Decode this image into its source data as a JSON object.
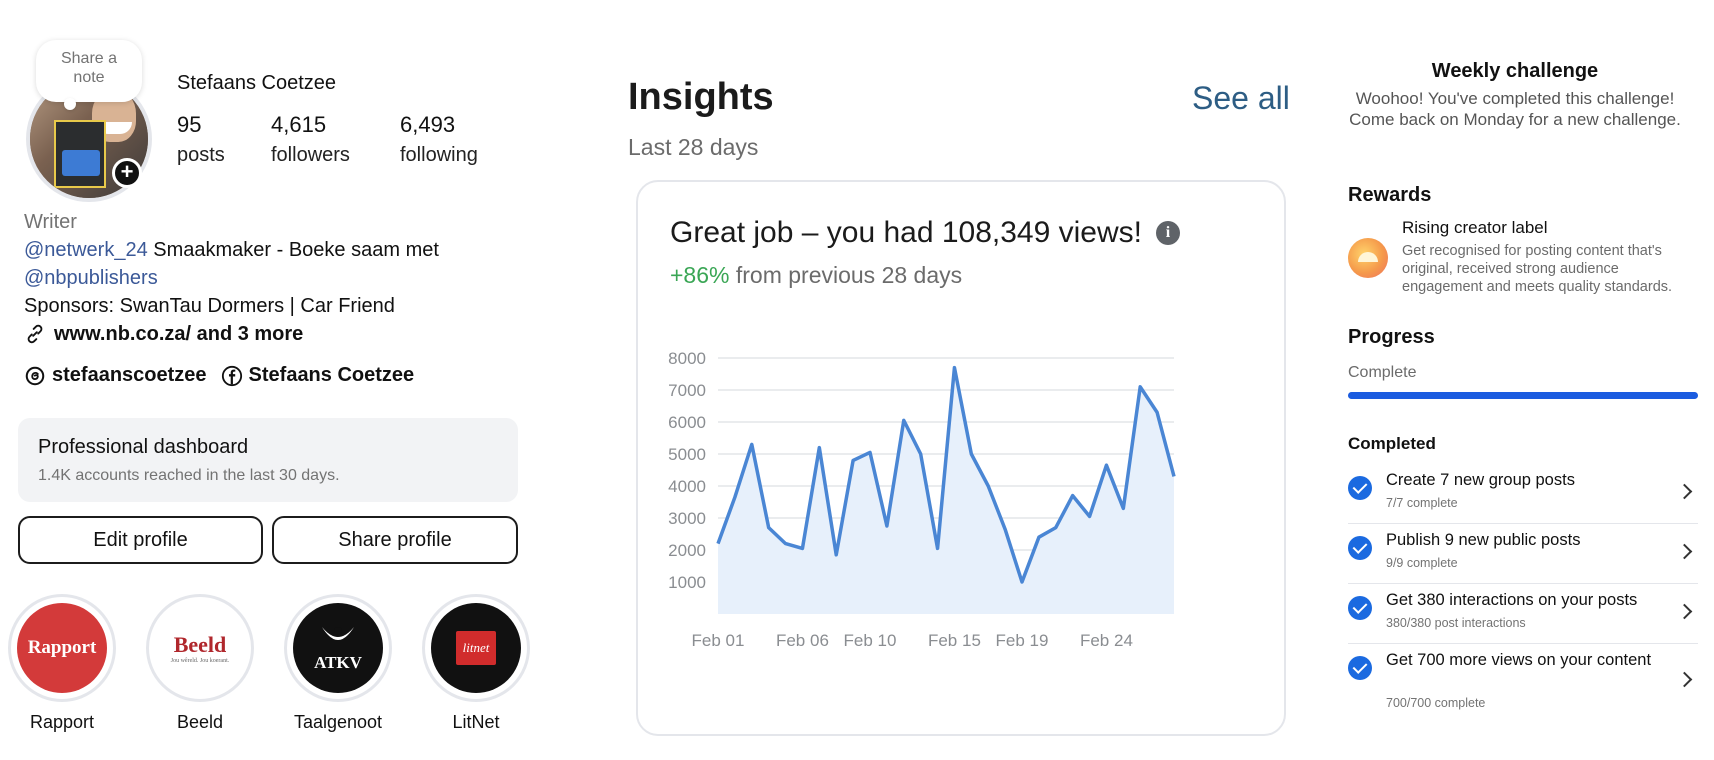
{
  "profile": {
    "note": [
      "Share a",
      "note"
    ],
    "name": "Stefaans Coetzee",
    "stats": {
      "posts": {
        "value": "95",
        "label": "posts"
      },
      "followers": {
        "value": "4,615",
        "label": "followers"
      },
      "following": {
        "value": "6,493",
        "label": "following"
      }
    },
    "bio": {
      "category": "Writer",
      "mention1": "@netwerk_24",
      "line1_rest": " Smaakmaker - Boeke saam met",
      "mention2": "@nbpublishers",
      "sponsors": "Sponsors: SwanTau Dormers | Car Friend",
      "link": "www.nb.co.za/ and 3 more"
    },
    "social": {
      "threads": "stefaanscoetzee",
      "facebook": "Stefaans Coetzee"
    },
    "dashboard": {
      "title": "Professional dashboard",
      "subtitle": "1.4K accounts reached in the last 30 days."
    },
    "buttons": {
      "edit": "Edit profile",
      "share": "Share profile"
    },
    "highlights": [
      {
        "label": "Rapport",
        "logo_text": "Rapport",
        "color": "#d33a3a"
      },
      {
        "label": "Beeld",
        "logo_text": "Beeld",
        "tagline": "Jou wêreld. Jou koerant.",
        "color": "#b0272c"
      },
      {
        "label": "Taalgenoot",
        "logo_text": "ATKV",
        "color": "#111111"
      },
      {
        "label": "LitNet",
        "logo_text": "litnet",
        "color": "#d12c2c"
      }
    ]
  },
  "insights": {
    "title": "Insights",
    "period": "Last 28 days",
    "see_all": "See all",
    "headline": "Great job – you had 108,349 views!",
    "delta_pct": "+86%",
    "delta_rest": " from previous 28 days",
    "info_icon": "info-icon"
  },
  "chart_data": {
    "type": "area",
    "x": [
      "Feb 01",
      "Feb 02",
      "Feb 03",
      "Feb 04",
      "Feb 05",
      "Feb 06",
      "Feb 07",
      "Feb 08",
      "Feb 09",
      "Feb 10",
      "Feb 11",
      "Feb 12",
      "Feb 13",
      "Feb 14",
      "Feb 15",
      "Feb 16",
      "Feb 17",
      "Feb 18",
      "Feb 19",
      "Feb 20",
      "Feb 21",
      "Feb 22",
      "Feb 23",
      "Feb 24",
      "Feb 25",
      "Feb 26",
      "Feb 27",
      "Feb 28"
    ],
    "values": [
      2200,
      3650,
      5300,
      2700,
      2200,
      2050,
      5200,
      1850,
      4800,
      5050,
      2750,
      6050,
      5000,
      2050,
      7700,
      5000,
      4000,
      2650,
      1000,
      2400,
      2700,
      3700,
      3050,
      4650,
      3300,
      7100,
      6300,
      4300
    ],
    "x_ticks": [
      "Feb 01",
      "Feb 06",
      "Feb 10",
      "Feb 15",
      "Feb 19",
      "Feb 24"
    ],
    "y_ticks": [
      1000,
      2000,
      3000,
      4000,
      5000,
      6000,
      7000,
      8000
    ],
    "ylim": [
      0,
      8000
    ],
    "line_color": "#4a86d4",
    "fill_color": "#e7f0fb",
    "grid": true
  },
  "challenge": {
    "title": "Weekly challenge",
    "description": "Woohoo! You've completed this challenge! Come back on Monday for a new challenge.",
    "rewards_heading": "Rewards",
    "reward": {
      "title": "Rising creator label",
      "description": "Get recognised for posting content that's original, received strong audience engagement and meets quality standards."
    },
    "progress_heading": "Progress",
    "progress_label": "Complete",
    "progress_value": 1.0,
    "completed_heading": "Completed",
    "tasks": [
      {
        "title": "Create 7 new group posts",
        "sub": "7/7 complete"
      },
      {
        "title": "Publish 9 new public posts",
        "sub": "9/9 complete"
      },
      {
        "title": "Get 380 interactions on your posts",
        "sub": "380/380 post interactions"
      },
      {
        "title": "Get 700 more views on your content",
        "sub": "700/700 complete"
      }
    ]
  }
}
